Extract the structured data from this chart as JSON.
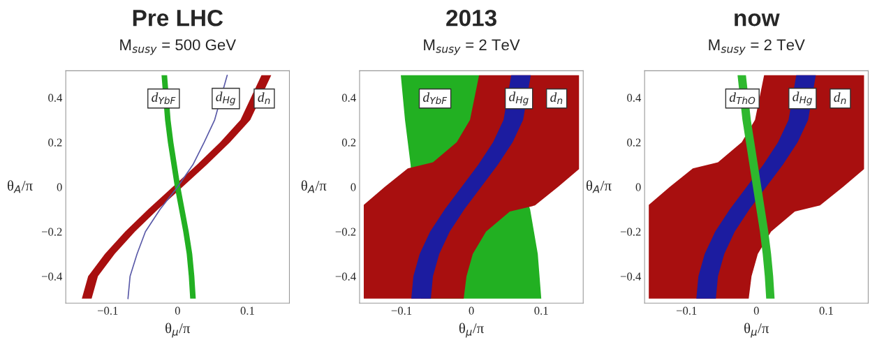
{
  "chart_data": [
    {
      "type": "area",
      "title": "Pre LHC",
      "subtitle": "M$_{susy}$ = 500 GeV",
      "xlabel": "θ$_{μ}$/π",
      "ylabel": "θ$_{A}$/π",
      "xlim": [
        -0.16,
        0.16
      ],
      "ylim": [
        -0.52,
        0.52
      ],
      "xticks": [
        -0.1,
        0,
        0.1
      ],
      "yticks": [
        -0.4,
        -0.2,
        0,
        0.2,
        0.4
      ],
      "series": [
        {
          "color": "#a80f0f",
          "x": [
            -0.137,
            -0.128,
            -0.104,
            -0.075,
            -0.042,
            -0.007,
            0.028,
            0.061,
            0.09,
            0.12,
            0.134,
            0.104,
            0.075,
            0.042,
            0.007,
            -0.028,
            -0.061,
            -0.09,
            -0.114,
            -0.123
          ],
          "values": [
            -0.5,
            -0.4,
            -0.3,
            -0.2,
            -0.1,
            0,
            0.1,
            0.2,
            0.3,
            0.5,
            0.5,
            0.3,
            0.2,
            0.1,
            0,
            -0.1,
            -0.2,
            -0.3,
            -0.4,
            -0.5
          ]
        },
        {
          "color": "#22b022",
          "x": [
            0.018,
            0.016,
            0.013,
            0.008,
            0.002,
            -0.004,
            -0.009,
            -0.014,
            -0.018,
            -0.023,
            -0.015,
            -0.01,
            -0.006,
            -0.001,
            0.004,
            0.01,
            0.016,
            0.021,
            0.024,
            0.026
          ],
          "values": [
            -0.5,
            -0.4,
            -0.3,
            -0.2,
            -0.1,
            0,
            0.1,
            0.2,
            0.3,
            0.5,
            0.5,
            0.3,
            0.2,
            0.1,
            0,
            -0.1,
            -0.2,
            -0.3,
            -0.4,
            -0.5
          ]
        },
        {
          "type": "line",
          "color": "#5a5aa8",
          "x": [
            -0.071,
            -0.068,
            -0.058,
            -0.046,
            -0.025,
            0,
            0.022,
            0.038,
            0.053,
            0.071
          ],
          "values": [
            -0.5,
            -0.4,
            -0.3,
            -0.2,
            -0.1,
            0,
            0.1,
            0.2,
            0.3,
            0.5
          ]
        }
      ],
      "annotations": [
        {
          "text": "d$_{YbF}$",
          "x": -0.02,
          "y": 0.5
        },
        {
          "text": "d$_{Hg}$",
          "x": 0.069,
          "y": 0.5
        },
        {
          "text": "d$_{n}$",
          "x": 0.124,
          "y": 0.5
        }
      ]
    },
    {
      "type": "area",
      "title": "2013",
      "subtitle": "M$_{susy}$ = 2 TeV",
      "xlabel": "θ$_{μ}$/π",
      "ylabel": "θ$_{A}$/π",
      "xlim": [
        -0.16,
        0.16
      ],
      "ylim": [
        -0.52,
        0.52
      ],
      "xticks": [
        -0.1,
        0,
        0.1
      ],
      "yticks": [
        -0.4,
        -0.2,
        0,
        0.2,
        0.4
      ],
      "series": [
        {
          "color": "#22b022",
          "x": [
            -0.101,
            -0.095,
            -0.087,
            -0.072,
            0.1,
            0.095,
            0.084,
            0.011
          ],
          "values": [
            0.5,
            0.3,
            0.1,
            -0.5,
            -0.5,
            -0.3,
            -0.1,
            0.5
          ]
        },
        {
          "color": "#a80f0f",
          "x": [
            0.011,
            -0.002,
            -0.021,
            -0.055,
            -0.091,
            -0.124,
            -0.154,
            -0.154,
            -0.011,
            -0.007,
            0.002,
            0.021,
            0.055,
            0.091,
            0.124,
            0.154,
            0.154
          ],
          "values": [
            0.5,
            0.3,
            0.2,
            0.11,
            0.083,
            0,
            -0.08,
            -0.5,
            -0.5,
            -0.4,
            -0.3,
            -0.2,
            -0.11,
            -0.083,
            0,
            0.08,
            0.5
          ]
        },
        {
          "color": "#1c1ca0",
          "x": [
            -0.086,
            -0.083,
            -0.074,
            -0.059,
            -0.038,
            -0.014,
            0.01,
            0.031,
            0.046,
            0.057,
            0.085,
            0.074,
            0.059,
            0.038,
            0.014,
            -0.01,
            -0.031,
            -0.046,
            -0.055,
            -0.058
          ],
          "values": [
            -0.5,
            -0.4,
            -0.3,
            -0.2,
            -0.1,
            0,
            0.1,
            0.2,
            0.3,
            0.5,
            0.5,
            0.3,
            0.2,
            0.1,
            0,
            -0.1,
            -0.2,
            -0.3,
            -0.4,
            -0.5
          ]
        }
      ],
      "annotations": [
        {
          "text": "d$_{YbF}$",
          "x": -0.052,
          "y": 0.5
        },
        {
          "text": "d$_{Hg}$",
          "x": 0.068,
          "y": 0.5
        },
        {
          "text": "d$_{n}$",
          "x": 0.122,
          "y": 0.5
        }
      ]
    },
    {
      "type": "area",
      "title": "now",
      "subtitle": "M$_{susy}$ = 2 TeV",
      "xlabel": "θ$_{μ}$/π",
      "ylabel": "θ$_{A}$/π",
      "xlim": [
        -0.16,
        0.16
      ],
      "ylim": [
        -0.52,
        0.52
      ],
      "xticks": [
        -0.1,
        0,
        0.1
      ],
      "yticks": [
        -0.4,
        -0.2,
        0,
        0.2,
        0.4
      ],
      "series": [
        {
          "color": "#a80f0f",
          "x": [
            0.011,
            -0.002,
            -0.021,
            -0.055,
            -0.091,
            -0.124,
            -0.154,
            -0.154,
            -0.011,
            -0.007,
            0.002,
            0.021,
            0.055,
            0.091,
            0.124,
            0.154,
            0.154
          ],
          "values": [
            0.5,
            0.3,
            0.2,
            0.11,
            0.083,
            0,
            -0.08,
            -0.5,
            -0.5,
            -0.4,
            -0.3,
            -0.2,
            -0.11,
            -0.083,
            0,
            0.08,
            0.5
          ]
        },
        {
          "color": "#1c1ca0",
          "x": [
            -0.086,
            -0.083,
            -0.074,
            -0.059,
            -0.038,
            -0.014,
            0.01,
            0.031,
            0.046,
            0.057,
            0.085,
            0.074,
            0.059,
            0.038,
            0.014,
            -0.01,
            -0.031,
            -0.046,
            -0.055,
            -0.058
          ],
          "values": [
            -0.5,
            -0.4,
            -0.3,
            -0.2,
            -0.1,
            0,
            0.1,
            0.2,
            0.3,
            0.5,
            0.5,
            0.3,
            0.2,
            0.1,
            0,
            -0.1,
            -0.2,
            -0.3,
            -0.4,
            -0.5
          ]
        },
        {
          "color": "#2eb82e",
          "x": [
            0.014,
            0.012,
            0.009,
            0.005,
            0.0,
            -0.005,
            -0.01,
            -0.015,
            -0.02,
            -0.027,
            -0.015,
            -0.008,
            -0.003,
            0.002,
            0.007,
            0.012,
            0.017,
            0.021,
            0.024,
            0.026
          ],
          "values": [
            -0.5,
            -0.4,
            -0.3,
            -0.2,
            -0.1,
            0,
            0.1,
            0.2,
            0.3,
            0.5,
            0.5,
            0.3,
            0.2,
            0.1,
            0,
            -0.1,
            -0.2,
            -0.3,
            -0.4,
            -0.5
          ]
        }
      ],
      "annotations": [
        {
          "text": "d$_{ThO}$",
          "x": -0.02,
          "y": 0.5
        },
        {
          "text": "d$_{Hg}$",
          "x": 0.066,
          "y": 0.5
        },
        {
          "text": "d$_{n}$",
          "x": 0.12,
          "y": 0.5
        }
      ]
    }
  ]
}
